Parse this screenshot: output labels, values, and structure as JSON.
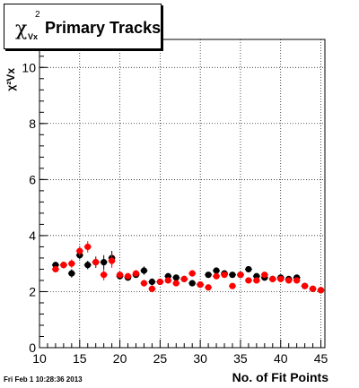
{
  "title": {
    "symbol": "χ",
    "superscript": "2",
    "subscript": "Vx",
    "text": "Primary Tracks"
  },
  "footer": "Fri Feb  1 10:28:36 2013",
  "chart_data": {
    "type": "scatter",
    "title": "Primary Tracks",
    "xlabel": "No. of Fit Points",
    "ylabel": "χ²Vx",
    "xlim": [
      10,
      45.5
    ],
    "ylim": [
      0,
      11
    ],
    "x_ticks": [
      "10",
      "15",
      "20",
      "25",
      "30",
      "35",
      "40",
      "45"
    ],
    "y_ticks": [
      "0",
      "2",
      "4",
      "6",
      "8",
      "10"
    ],
    "grid": true,
    "colors": {
      "series1": "#000000",
      "series2": "#ff0000"
    },
    "series": [
      {
        "x": [
          12,
          13,
          14,
          15,
          16,
          17,
          18,
          19,
          20,
          21,
          22,
          23,
          24,
          25,
          26,
          27,
          28,
          29,
          30,
          31,
          32,
          33,
          34,
          35,
          36,
          37,
          38,
          39,
          40,
          41,
          42,
          43,
          44,
          45
        ],
        "y": [
          2.95,
          2.95,
          2.65,
          3.3,
          2.95,
          3.05,
          3.05,
          3.2,
          2.55,
          2.5,
          2.6,
          2.75,
          2.35,
          2.35,
          2.55,
          2.5,
          2.45,
          2.3,
          2.25,
          2.6,
          2.75,
          2.65,
          2.6,
          2.6,
          2.8,
          2.55,
          2.5,
          2.45,
          2.5,
          2.45,
          2.5,
          2.2,
          2.1,
          2.05
        ],
        "yerr": [
          0.1,
          0.12,
          0.15,
          0.15,
          0.15,
          0.2,
          0.25,
          0.25,
          0.1,
          0.08,
          0.1,
          0.15,
          0.12,
          0.1,
          0.08,
          0.08,
          0.08,
          0.08,
          0.08,
          0.08,
          0.1,
          0.08,
          0.08,
          0.08,
          0.08,
          0.06,
          0.06,
          0.06,
          0.06,
          0.06,
          0.06,
          0.06,
          0.06,
          0.06
        ]
      },
      {
        "x": [
          12,
          13,
          14,
          15,
          16,
          17,
          18,
          19,
          20,
          21,
          22,
          23,
          24,
          25,
          26,
          27,
          28,
          29,
          30,
          31,
          32,
          33,
          34,
          35,
          36,
          37,
          38,
          39,
          40,
          41,
          42,
          43,
          44,
          45
        ],
        "y": [
          2.8,
          2.95,
          3.0,
          3.45,
          3.6,
          3.05,
          2.6,
          3.1,
          2.6,
          2.55,
          2.65,
          2.3,
          2.1,
          2.35,
          2.4,
          2.3,
          2.45,
          2.65,
          2.25,
          2.15,
          2.55,
          2.6,
          2.2,
          2.6,
          2.4,
          2.4,
          2.6,
          2.45,
          2.45,
          2.4,
          2.4,
          2.2,
          2.1,
          2.05
        ],
        "yerr": [
          0.1,
          0.12,
          0.15,
          0.18,
          0.2,
          0.2,
          0.2,
          0.25,
          0.1,
          0.08,
          0.1,
          0.12,
          0.12,
          0.1,
          0.08,
          0.08,
          0.08,
          0.08,
          0.08,
          0.08,
          0.08,
          0.08,
          0.08,
          0.08,
          0.06,
          0.06,
          0.06,
          0.06,
          0.06,
          0.06,
          0.06,
          0.06,
          0.06,
          0.06
        ]
      }
    ]
  }
}
